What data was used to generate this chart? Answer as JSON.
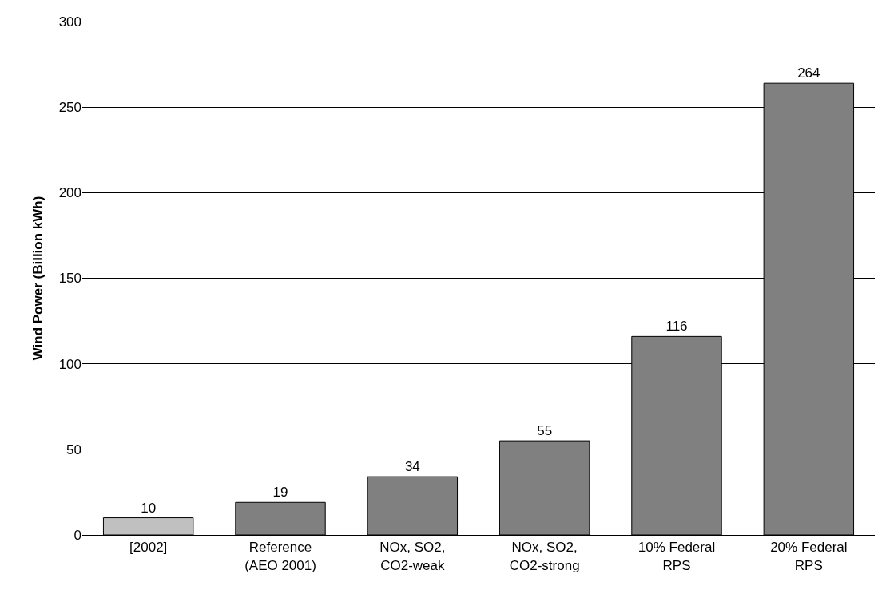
{
  "chart_data": {
    "type": "bar",
    "ylabel": "Wind Power (Billion kWh)",
    "categories": [
      "[2002]",
      "Reference\n(AEO 2001)",
      "NOx, SO2,\nCO2-weak",
      "NOx, SO2,\nCO2-strong",
      "10% Federal\nRPS",
      "20% Federal\nRPS"
    ],
    "values": [
      10,
      19,
      34,
      55,
      116,
      264
    ],
    "colors": [
      "#c0c0c0",
      "#808080",
      "#808080",
      "#808080",
      "#808080",
      "#808080"
    ],
    "ylim": [
      0,
      300
    ],
    "yticks": [
      0,
      50,
      100,
      150,
      200,
      250,
      300
    ],
    "grid": "y",
    "data_labels": true,
    "legend": false
  }
}
